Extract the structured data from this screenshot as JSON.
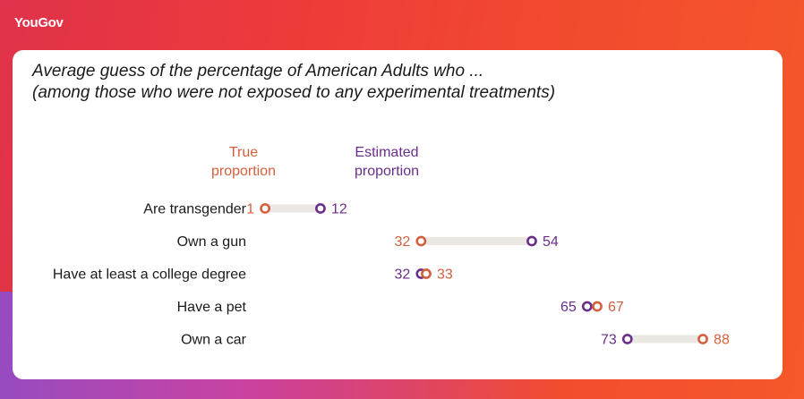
{
  "brand": {
    "logo": "YouGov"
  },
  "title": {
    "line1": "Average guess of the percentage of American Adults who ...",
    "line2": "(among those who were not exposed to any experimental treatments)"
  },
  "legend": {
    "true_line1": "True",
    "true_line2": "proportion",
    "est_line1": "Estimated",
    "est_line2": "proportion"
  },
  "colors": {
    "true": "#d45f3c",
    "estimated": "#6a2e8a",
    "bar": "#ebe7e3",
    "label": "#1a1a1a"
  },
  "chart_data": {
    "type": "dot",
    "categories": [
      "Are transgender",
      "Own a gun",
      "Have at least a college degree",
      "Have a pet",
      "Own a car"
    ],
    "series": [
      {
        "name": "True proportion",
        "values": [
          1,
          32,
          33,
          67,
          88
        ]
      },
      {
        "name": "Estimated proportion",
        "values": [
          12,
          54,
          32,
          65,
          73
        ]
      }
    ]
  }
}
